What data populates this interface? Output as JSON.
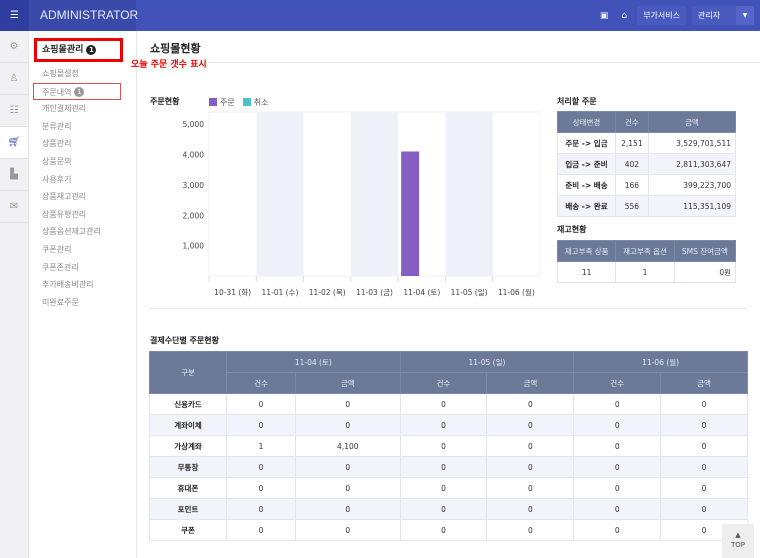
{
  "header": {
    "brand": "ADMINISTRATOR",
    "service_btn": "부가서비스",
    "user_select": "관리자",
    "icons": [
      "shop-icon",
      "home-icon"
    ]
  },
  "iconbar": [
    "gear-icon",
    "user-icon",
    "list-icon",
    "cart-icon",
    "chart-icon",
    "mail-icon"
  ],
  "menu": {
    "title": "쇼핑몰관리",
    "title_badge": "1",
    "annotation": "오늘 주문 갯수 표시",
    "items": [
      {
        "label": "쇼핑몰설정"
      },
      {
        "label": "주문내역",
        "badge": "1"
      },
      {
        "label": "개인결제관리"
      },
      {
        "label": "분류관리"
      },
      {
        "label": "상품관리"
      },
      {
        "label": "상품문의"
      },
      {
        "label": "사용후기"
      },
      {
        "label": "상품재고관리"
      },
      {
        "label": "상품유형관리"
      },
      {
        "label": "상품옵션재고관리"
      },
      {
        "label": "쿠폰관리"
      },
      {
        "label": "쿠폰존관리"
      },
      {
        "label": "추가배송비관리"
      },
      {
        "label": "미완료주문"
      }
    ]
  },
  "page_title": "쇼핑몰현황",
  "chart_data": {
    "type": "bar",
    "title": "주문현황",
    "categories": [
      "10-31 (화)",
      "11-01 (수)",
      "11-02 (목)",
      "11-03 (금)",
      "11-04 (토)",
      "11-05 (일)",
      "11-06 (월)"
    ],
    "series": [
      {
        "name": "주문",
        "color": "#845ec2",
        "values": [
          0,
          0,
          0,
          0,
          4100,
          0,
          0
        ]
      },
      {
        "name": "취소",
        "color": "#4fc1c6",
        "values": [
          0,
          0,
          0,
          0,
          0,
          0,
          0
        ]
      }
    ],
    "yticks": [
      "1,000",
      "2,000",
      "3,000",
      "4,000",
      "5,000"
    ],
    "ylim": [
      0,
      5400
    ]
  },
  "pending": {
    "title": "처리할 주문",
    "headers": [
      "상태변경",
      "건수",
      "금액"
    ],
    "rows": [
      [
        "주문 -> 입금",
        "2,151",
        "3,529,701,511"
      ],
      [
        "입금 -> 준비",
        "402",
        "2,811,303,647"
      ],
      [
        "준비 -> 배송",
        "166",
        "399,223,700"
      ],
      [
        "배송 -> 완료",
        "556",
        "115,351,109"
      ]
    ]
  },
  "stock": {
    "title": "재고현황",
    "headers": [
      "재고부족 상품",
      "재고부족 옵션",
      "SMS 잔여금액"
    ],
    "row": [
      "11",
      "1",
      "0원"
    ]
  },
  "payment": {
    "title": "결제수단별 주문현황",
    "corner": "구분",
    "dates": [
      "11-04 (토)",
      "11-05 (일)",
      "11-06 (월)"
    ],
    "sub": [
      "건수",
      "금액"
    ],
    "rows": [
      [
        "신용카드",
        "0",
        "0",
        "0",
        "0",
        "0",
        "0"
      ],
      [
        "계좌이체",
        "0",
        "0",
        "0",
        "0",
        "0",
        "0"
      ],
      [
        "가상계좌",
        "1",
        "4,100",
        "0",
        "0",
        "0",
        "0"
      ],
      [
        "무통장",
        "0",
        "0",
        "0",
        "0",
        "0",
        "0"
      ],
      [
        "휴대폰",
        "0",
        "0",
        "0",
        "0",
        "0",
        "0"
      ],
      [
        "포인트",
        "0",
        "0",
        "0",
        "0",
        "0",
        "0"
      ],
      [
        "쿠폰",
        "0",
        "0",
        "0",
        "0",
        "0",
        "0"
      ]
    ]
  },
  "top_button": "TOP"
}
